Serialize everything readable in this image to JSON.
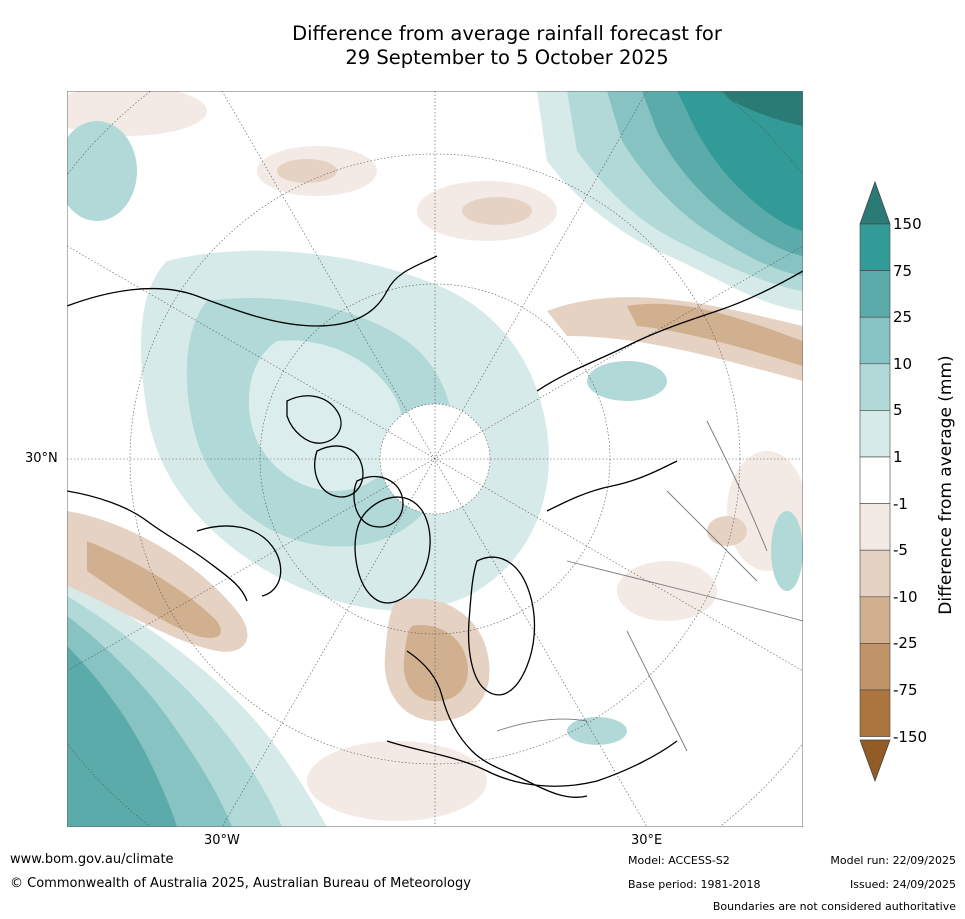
{
  "title_line1": "Difference from average rainfall forecast for",
  "title_line2": "29 September to 5 October 2025",
  "map": {
    "projection": "North polar stereographic",
    "lat_label": "30°N",
    "lon_labels": [
      "30°W",
      "30°E"
    ]
  },
  "colorbar": {
    "label": "Difference from average (mm)",
    "ticks": [
      "150",
      "75",
      "25",
      "10",
      "5",
      "1",
      "-1",
      "-5",
      "-10",
      "-25",
      "-75",
      "-150"
    ],
    "colors": {
      "over": "#2a7b76",
      "bins": [
        "#329a97",
        "#5aabaa",
        "#87c3c2",
        "#b0d9d8",
        "#d6eae9",
        "#ffffff",
        "#f3eae5",
        "#e5d2c3",
        "#d1b090",
        "#c09368",
        "#ac7540"
      ],
      "under": "#935b25"
    }
  },
  "footer": {
    "website": "www.bom.gov.au/climate",
    "copyright": "© Commonwealth of Australia 2025, Australian Bureau of Meteorology",
    "model": "Model: ACCESS-S2",
    "base_period": "Base period: 1981-2018",
    "model_run": "Model run: 22/09/2025",
    "issued": "Issued: 24/09/2025",
    "disclaimer": "Boundaries are not considered authoritative"
  }
}
